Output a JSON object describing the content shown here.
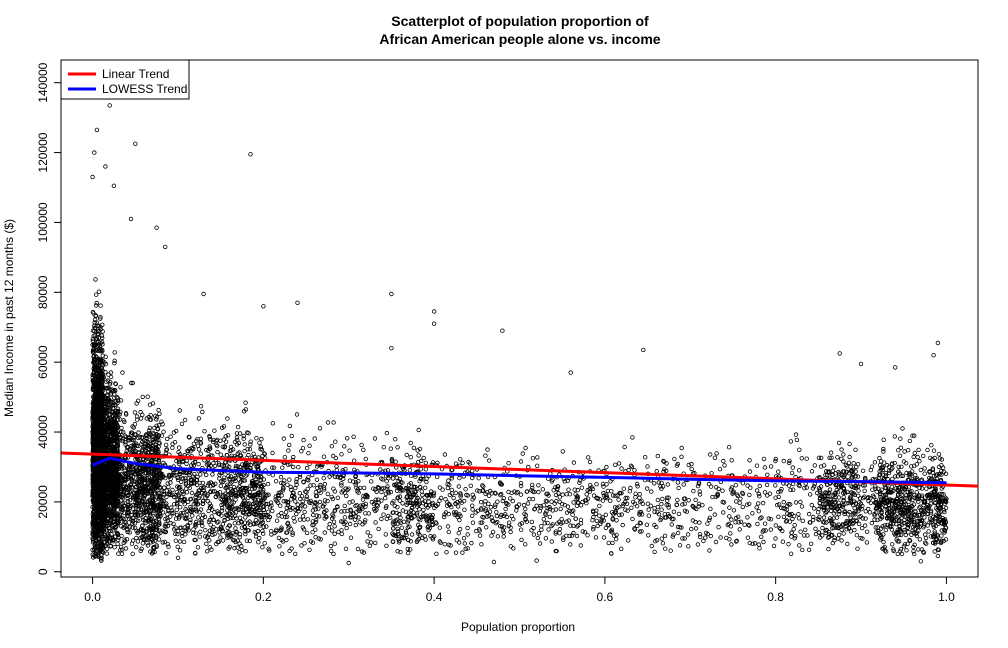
{
  "chart_data": {
    "type": "scatter",
    "title_line1": "Scatterplot of population proportion of",
    "title_line2": "African American people alone vs. income",
    "xlabel": "Population proportion",
    "ylabel": "Median Income in past 12 months ($)",
    "xlim": [
      -0.037,
      1.037
    ],
    "ylim": [
      -1500,
      146500
    ],
    "xticks": [
      0.0,
      0.2,
      0.4,
      0.6,
      0.8,
      1.0
    ],
    "xtick_labels": [
      "0.0",
      "0.2",
      "0.4",
      "0.6",
      "0.8",
      "1.0"
    ],
    "yticks": [
      0,
      20000,
      40000,
      60000,
      80000,
      100000,
      120000,
      140000
    ],
    "ytick_labels": [
      "0",
      "20000",
      "40000",
      "60000",
      "80000",
      "100000",
      "120000",
      "140000"
    ],
    "grid": false,
    "legend_position": "top-left",
    "legend": [
      {
        "label": "Linear Trend",
        "color": "#ff0000"
      },
      {
        "label": "LOWESS Trend",
        "color": "#0000ff"
      }
    ],
    "linear_trend": {
      "color": "#ff0000",
      "points": [
        [
          -0.037,
          34000
        ],
        [
          1.037,
          24500
        ]
      ]
    },
    "lowess_trend": {
      "color": "#0000ff",
      "points": [
        [
          0.0,
          30500
        ],
        [
          0.02,
          32500
        ],
        [
          0.05,
          31000
        ],
        [
          0.1,
          29500
        ],
        [
          0.2,
          28500
        ],
        [
          0.3,
          28300
        ],
        [
          0.4,
          28000
        ],
        [
          0.5,
          27500
        ],
        [
          0.6,
          27000
        ],
        [
          0.7,
          26500
        ],
        [
          0.8,
          26000
        ],
        [
          0.9,
          25800
        ],
        [
          1.0,
          25500
        ]
      ]
    },
    "outlier_points": [
      [
        0.005,
        142000
      ],
      [
        0.02,
        133500
      ],
      [
        0.005,
        126500
      ],
      [
        0.05,
        122500
      ],
      [
        0.002,
        120000
      ],
      [
        0.185,
        119500
      ],
      [
        0.015,
        116000
      ],
      [
        0.025,
        110500
      ],
      [
        0.0,
        113000
      ],
      [
        0.045,
        101000
      ],
      [
        0.075,
        98500
      ],
      [
        0.085,
        93000
      ],
      [
        0.35,
        79500
      ],
      [
        0.4,
        74500
      ],
      [
        0.4,
        71000
      ],
      [
        0.48,
        69000
      ],
      [
        0.645,
        63500
      ],
      [
        0.99,
        65500
      ],
      [
        0.9,
        59500
      ],
      [
        0.56,
        57000
      ],
      [
        0.35,
        64000
      ],
      [
        0.2,
        76000
      ],
      [
        0.24,
        77000
      ],
      [
        0.13,
        79500
      ],
      [
        0.985,
        62000
      ],
      [
        0.875,
        62500
      ],
      [
        0.94,
        58500
      ],
      [
        0.1,
        4000
      ],
      [
        0.3,
        2500
      ],
      [
        0.47,
        2800
      ],
      [
        0.52,
        3200
      ],
      [
        0.97,
        3000
      ],
      [
        0.99,
        4500
      ]
    ],
    "density": [
      {
        "x": [
          0.0,
          0.012
        ],
        "ymin": 3000,
        "ymax": 105000,
        "count": 1200
      },
      {
        "x": [
          0.0,
          0.03
        ],
        "ymin": 8000,
        "ymax": 80000,
        "count": 1300
      },
      {
        "x": [
          0.01,
          0.08
        ],
        "ymin": 5000,
        "ymax": 70000,
        "count": 900
      },
      {
        "x": [
          0.05,
          0.2
        ],
        "ymin": 5000,
        "ymax": 62000,
        "count": 900
      },
      {
        "x": [
          0.15,
          0.4
        ],
        "ymin": 5000,
        "ymax": 55000,
        "count": 800
      },
      {
        "x": [
          0.35,
          0.9
        ],
        "ymin": 5000,
        "ymax": 50000,
        "count": 1100
      },
      {
        "x": [
          0.85,
          0.92
        ],
        "ymin": 8000,
        "ymax": 48000,
        "count": 250
      },
      {
        "x": [
          0.92,
          1.0
        ],
        "ymin": 5000,
        "ymax": 50000,
        "count": 650
      }
    ]
  }
}
